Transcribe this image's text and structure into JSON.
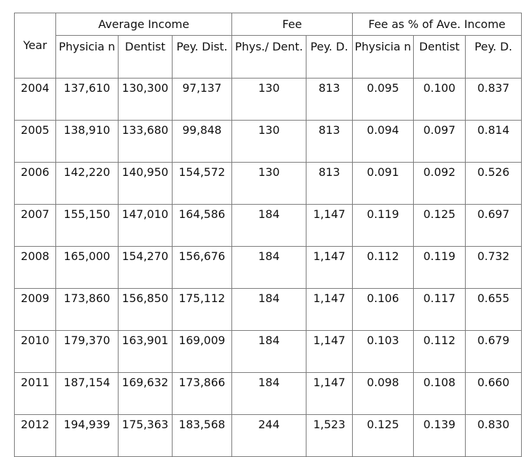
{
  "table": {
    "year_header": "Year",
    "group_headers": {
      "average_income": "Average Income",
      "fee": "Fee",
      "fee_pct": "Fee as % of Ave. Income"
    },
    "sub_headers": {
      "avg_physician": "Physicia n",
      "avg_dentist": "Dentist",
      "avg_pey": "Pey. Dist.",
      "fee_phys_dent": "Phys./ Dent.",
      "fee_pey": "Pey. D.",
      "pct_physician": "Physicia n",
      "pct_dentist": "Dentist",
      "pct_pey": "Pey. D."
    },
    "rows": [
      {
        "year": "2004",
        "avg_physician": "137,610",
        "avg_dentist": "130,300",
        "avg_pey": "97,137",
        "fee_phys_dent": "130",
        "fee_pey": "813",
        "pct_physician": "0.095",
        "pct_dentist": "0.100",
        "pct_pey": "0.837"
      },
      {
        "year": "2005",
        "avg_physician": "138,910",
        "avg_dentist": "133,680",
        "avg_pey": "99,848",
        "fee_phys_dent": "130",
        "fee_pey": "813",
        "pct_physician": "0.094",
        "pct_dentist": "0.097",
        "pct_pey": "0.814"
      },
      {
        "year": "2006",
        "avg_physician": "142,220",
        "avg_dentist": "140,950",
        "avg_pey": "154,572",
        "fee_phys_dent": "130",
        "fee_pey": "813",
        "pct_physician": "0.091",
        "pct_dentist": "0.092",
        "pct_pey": "0.526"
      },
      {
        "year": "2007",
        "avg_physician": "155,150",
        "avg_dentist": "147,010",
        "avg_pey": "164,586",
        "fee_phys_dent": "184",
        "fee_pey": "1,147",
        "pct_physician": "0.119",
        "pct_dentist": "0.125",
        "pct_pey": "0.697"
      },
      {
        "year": "2008",
        "avg_physician": "165,000",
        "avg_dentist": "154,270",
        "avg_pey": "156,676",
        "fee_phys_dent": "184",
        "fee_pey": "1,147",
        "pct_physician": "0.112",
        "pct_dentist": "0.119",
        "pct_pey": "0.732"
      },
      {
        "year": "2009",
        "avg_physician": "173,860",
        "avg_dentist": "156,850",
        "avg_pey": "175,112",
        "fee_phys_dent": "184",
        "fee_pey": "1,147",
        "pct_physician": "0.106",
        "pct_dentist": "0.117",
        "pct_pey": "0.655"
      },
      {
        "year": "2010",
        "avg_physician": "179,370",
        "avg_dentist": "163,901",
        "avg_pey": "169,009",
        "fee_phys_dent": "184",
        "fee_pey": "1,147",
        "pct_physician": "0.103",
        "pct_dentist": "0.112",
        "pct_pey": "0.679"
      },
      {
        "year": "2011",
        "avg_physician": "187,154",
        "avg_dentist": "169,632",
        "avg_pey": "173,866",
        "fee_phys_dent": "184",
        "fee_pey": "1,147",
        "pct_physician": "0.098",
        "pct_dentist": "0.108",
        "pct_pey": "0.660"
      },
      {
        "year": "2012",
        "avg_physician": "194,939",
        "avg_dentist": "175,363",
        "avg_pey": "183,568",
        "fee_phys_dent": "244",
        "fee_pey": "1,523",
        "pct_physician": "0.125",
        "pct_dentist": "0.139",
        "pct_pey": "0.830"
      }
    ]
  }
}
